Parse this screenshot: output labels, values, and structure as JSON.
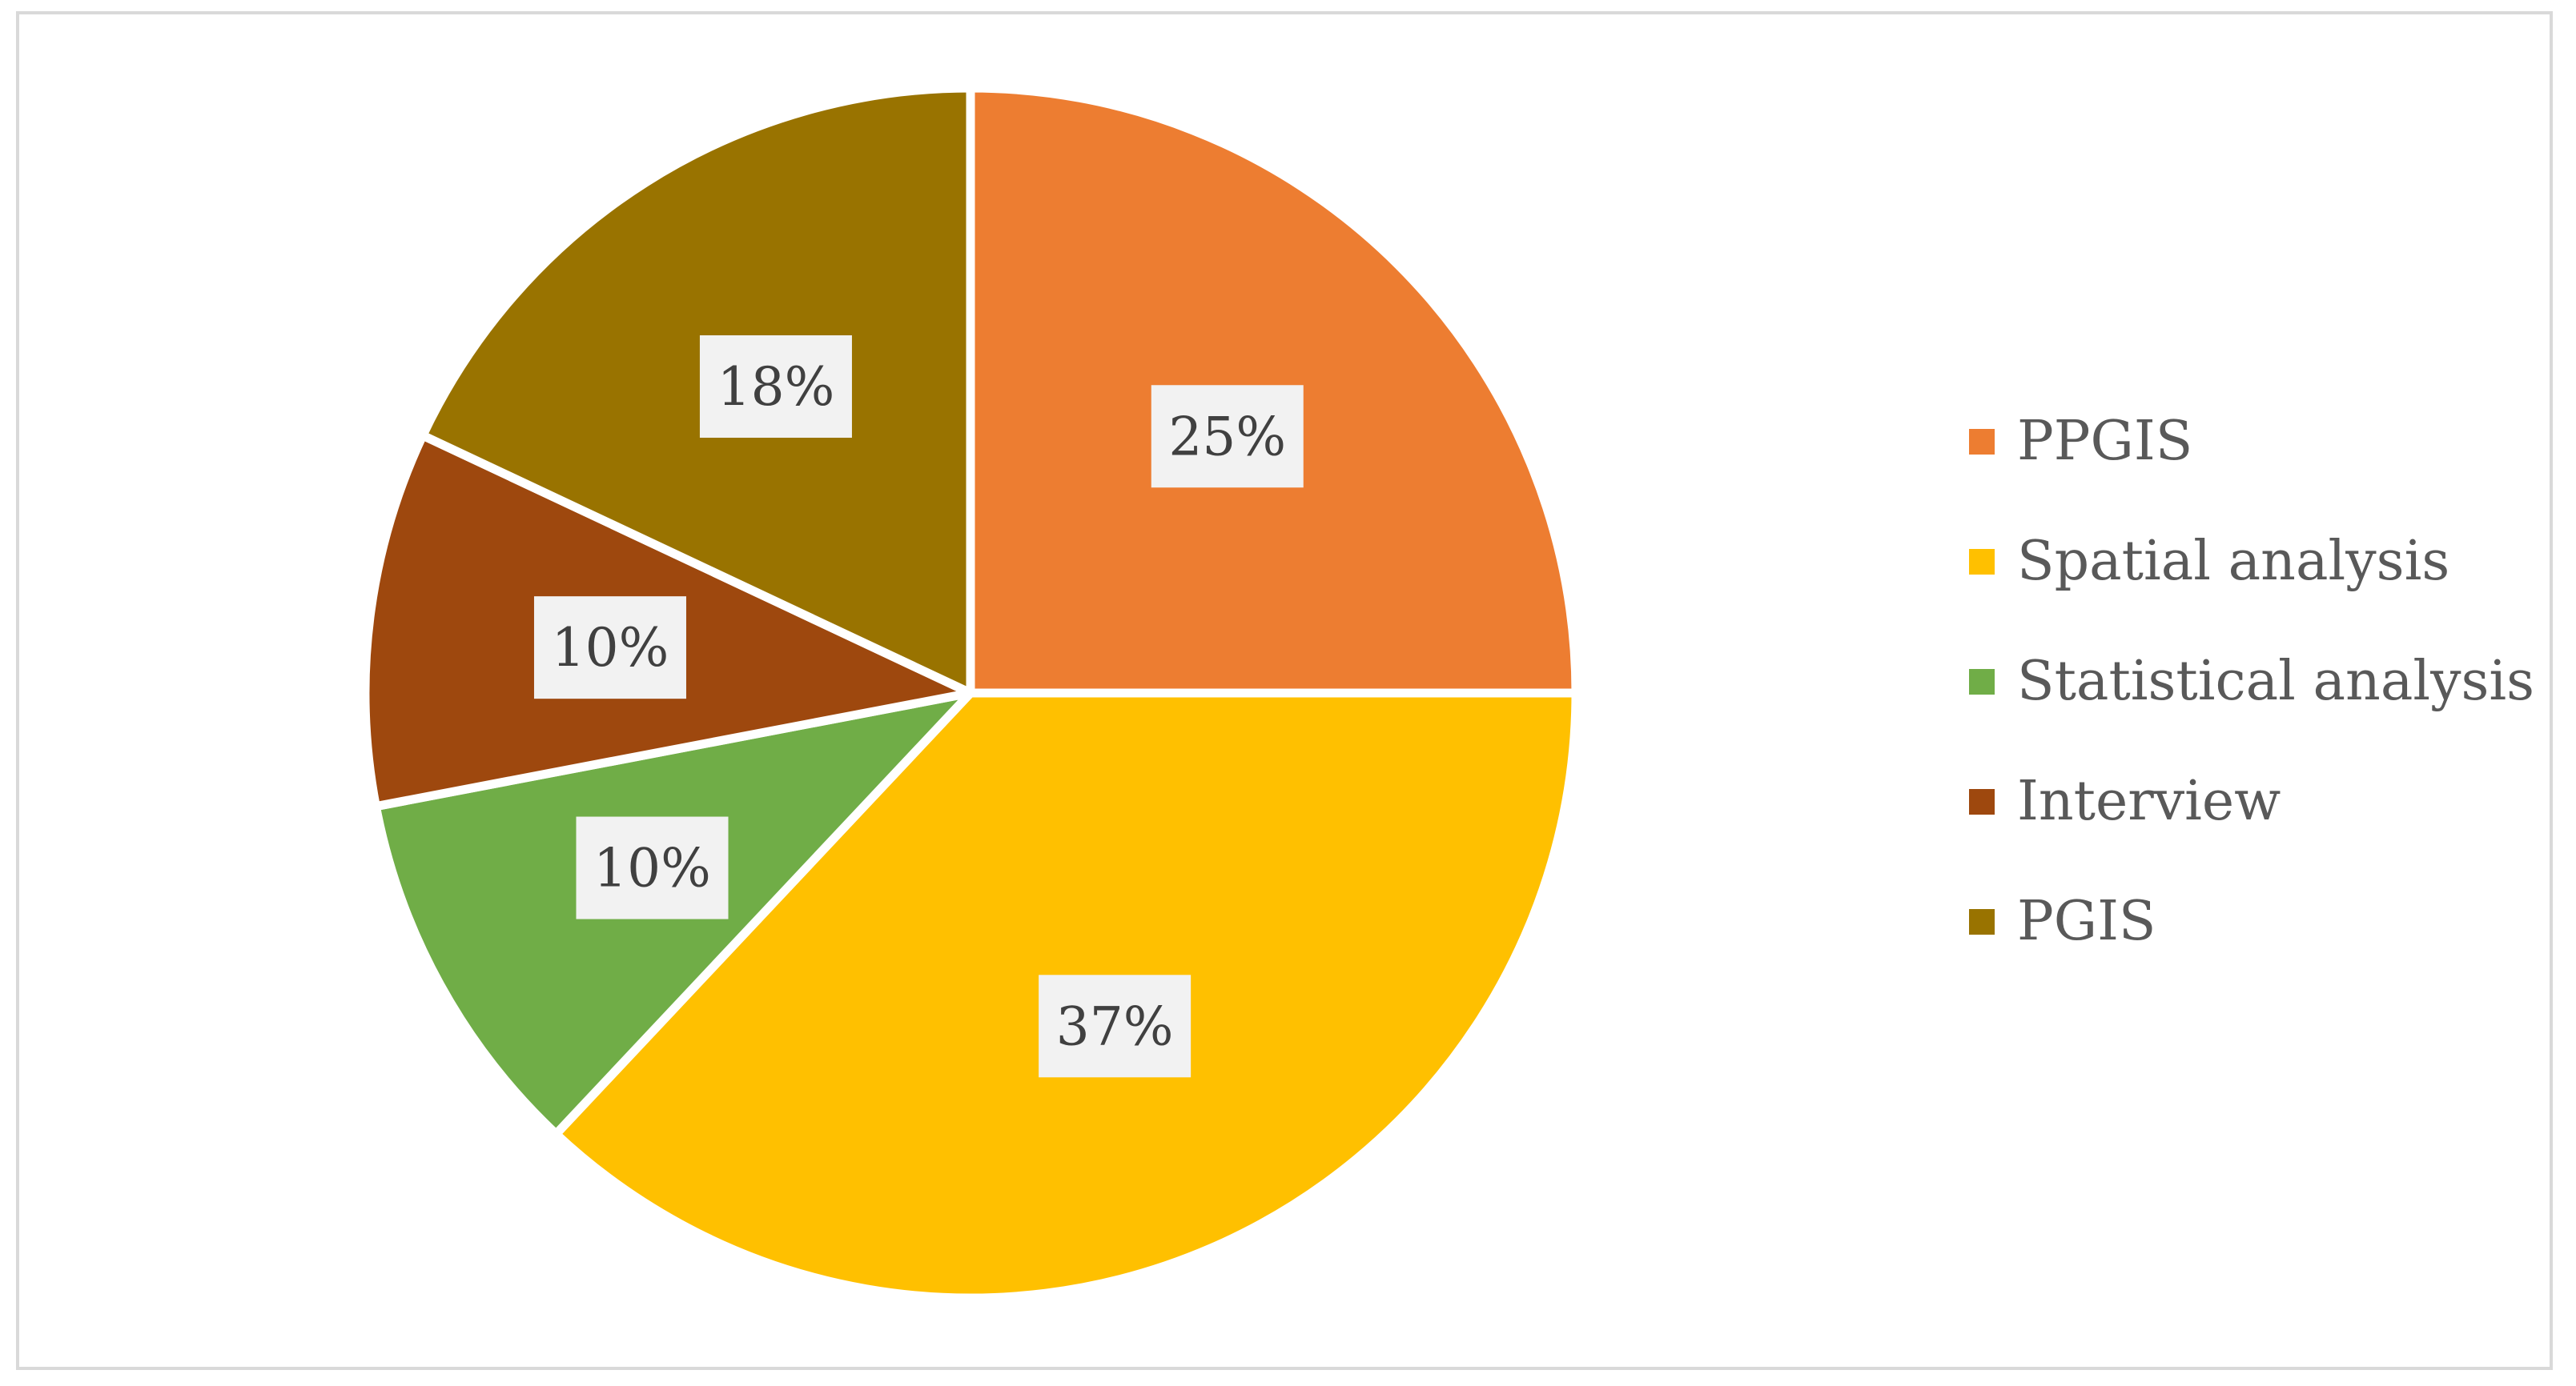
{
  "chart_data": {
    "type": "pie",
    "slices": [
      {
        "name": "PPGIS",
        "value": 25,
        "label": "25%",
        "color": "#ED7D31"
      },
      {
        "name": "Spatial analysis",
        "value": 37,
        "label": "37%",
        "color": "#FFC000"
      },
      {
        "name": "Statistical analysis",
        "value": 10,
        "label": "10%",
        "color": "#70AD47"
      },
      {
        "name": "Interview",
        "value": 10,
        "label": "10%",
        "color": "#9E480E"
      },
      {
        "name": "PGIS",
        "value": 18,
        "label": "18%",
        "color": "#997300"
      }
    ],
    "start_angle": "12 o'clock",
    "direction": "clockwise",
    "legend_position": "right",
    "label_box_color": "#F2F2F2",
    "border_color": "#D9D9D9"
  }
}
